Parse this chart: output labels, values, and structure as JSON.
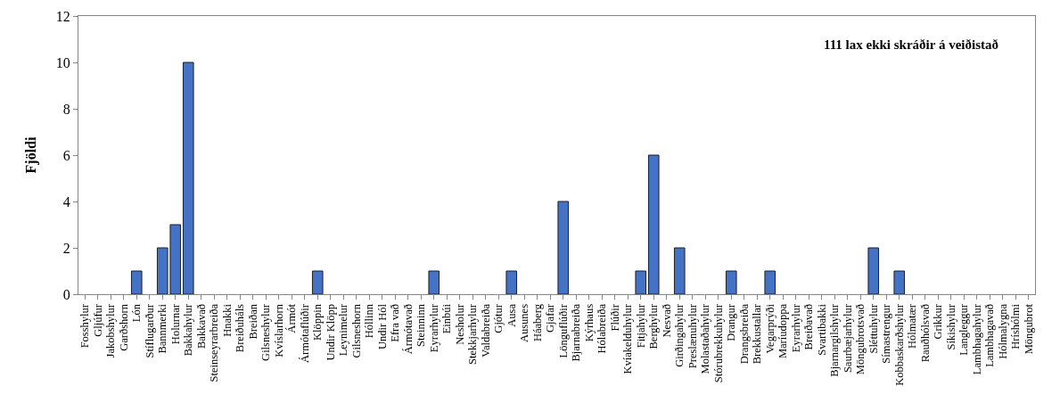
{
  "chart_data": {
    "type": "bar",
    "ylabel": "Fjöldi",
    "annotations": [
      "111 lax ekki skráðir á veiðistað"
    ],
    "categories": [
      "Fosshylur",
      "Gljúfur",
      "Jakobshylur",
      "Garðshorn",
      "Lón",
      "Stíflugarður",
      "Bannmerki",
      "Holurnar",
      "Bakkahylur",
      "Bakkavað",
      "Steinseyrarbreiða",
      "Hnakki",
      "Breiðuháls",
      "Breiðan",
      "Gilsneshylur",
      "Kvíslarhorn",
      "Ármót",
      "Ármótaflúðir",
      "Klöppin",
      "Undir Klöpp",
      "Leynimelur",
      "Gilsneshorn",
      "Hóllinn",
      "Undir Hól",
      "Efra vað",
      "Ármótavað",
      "Steinninn",
      "Eyrarhylur",
      "Einbúi",
      "Nesholur",
      "Stekkjarhylur",
      "Valdabreiða",
      "Gjótur",
      "Ausa",
      "Ausunes",
      "Háaberg",
      "Gjafar",
      "Lönguflúðir",
      "Bjarnabreiða",
      "Kýrhaus",
      "Hólabreiða",
      "Flúðir",
      "Kvíakelduhylur",
      "Fitjahylur",
      "Berghylur",
      "Nesvað",
      "Girðingahylur",
      "Preslænuhylur",
      "Molastaðahylur",
      "Stórubrekkuhylur",
      "Drangur",
      "Drangsbreiða",
      "Brekkustallar",
      "Vegarprýði",
      "Maríudoppa",
      "Eyrarhylur",
      "Breiðavað",
      "Svartibakki",
      "Bjarnargilshylur",
      "Saurbæjarhylur",
      "Möngubrotsvað",
      "Sléttuhylur",
      "Símastrengur",
      "Kobbaskarðshylur",
      "Hólmatær",
      "Rauðhólsvað",
      "Grikkur",
      "Síkishylur",
      "Langleggur",
      "Lambhagahylur",
      "Lambhagavað",
      "Hólmalygna",
      "Hríshólmi",
      "Möngubrot"
    ],
    "values": [
      0,
      0,
      0,
      0,
      1,
      0,
      2,
      3,
      10,
      0,
      0,
      0,
      0,
      0,
      0,
      0,
      0,
      0,
      1,
      0,
      0,
      0,
      0,
      0,
      0,
      0,
      0,
      1,
      0,
      0,
      0,
      0,
      0,
      1,
      0,
      0,
      0,
      4,
      0,
      0,
      0,
      0,
      0,
      1,
      6,
      0,
      2,
      0,
      0,
      0,
      1,
      0,
      0,
      1,
      0,
      0,
      0,
      0,
      0,
      0,
      0,
      2,
      0,
      1,
      0,
      0,
      0,
      0,
      0,
      0,
      0,
      0,
      0,
      0
    ],
    "color": "#4472c4",
    "ylim": [
      0,
      12
    ],
    "yticks": [
      0,
      2,
      4,
      6,
      8,
      10,
      12
    ],
    "grid": false
  }
}
